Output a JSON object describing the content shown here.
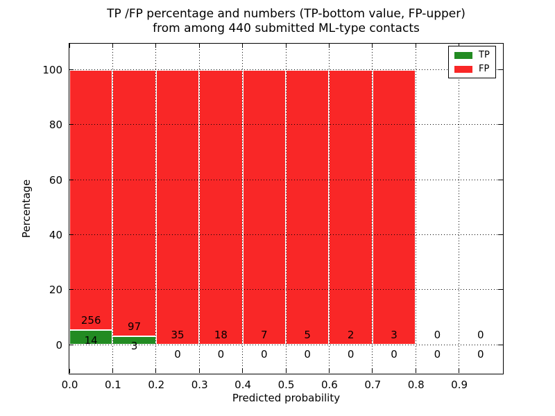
{
  "title": {
    "line1": "TP /FP percentage and numbers (TP-bottom value, FP-upper)",
    "line2": "from among 440 submitted ML-type contacts"
  },
  "axes": {
    "xlabel": "Predicted probability",
    "ylabel": "Percentage",
    "x_tick_labels": [
      "0.0",
      "0.1",
      "0.2",
      "0.3",
      "0.4",
      "0.5",
      "0.6",
      "0.7",
      "0.8",
      "0.9"
    ],
    "y_tick_labels": [
      "0",
      "20",
      "40",
      "60",
      "80",
      "100"
    ],
    "grid_style": "dotted"
  },
  "legend": {
    "position": "upper right",
    "items": [
      {
        "label": "TP",
        "color": "#228b22"
      },
      {
        "label": "FP",
        "color": "#f92727"
      }
    ]
  },
  "chart_data": {
    "type": "bar",
    "stacked": true,
    "normalized_to_percent": true,
    "title": "TP /FP percentage and numbers (TP-bottom value, FP-upper) from among 440 submitted ML-type contacts",
    "xlabel": "Predicted probability",
    "ylabel": "Percentage",
    "xlim": [
      0.0,
      1.0
    ],
    "ylim": [
      -10.5,
      109.5
    ],
    "bin_width": 0.1,
    "bin_starts": [
      0.0,
      0.1,
      0.2,
      0.3,
      0.4,
      0.5,
      0.6,
      0.7,
      0.8,
      0.9
    ],
    "series": [
      {
        "name": "TP",
        "color": "#228b22",
        "counts": [
          14,
          3,
          0,
          0,
          0,
          0,
          0,
          0,
          0,
          0
        ]
      },
      {
        "name": "FP",
        "color": "#f92727",
        "counts": [
          256,
          97,
          35,
          18,
          7,
          5,
          2,
          3,
          0,
          0
        ]
      }
    ],
    "total_contacts": 440
  }
}
